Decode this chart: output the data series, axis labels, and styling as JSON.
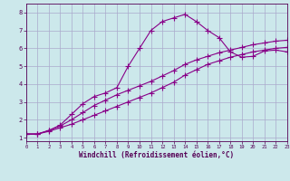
{
  "title": "",
  "xlabel": "Windchill (Refroidissement éolien,°C)",
  "ylabel": "",
  "bg_color": "#cce8eb",
  "line_color": "#880088",
  "grid_color": "#aaaacc",
  "xlim": [
    0,
    23
  ],
  "ylim": [
    0.8,
    8.5
  ],
  "xticks": [
    0,
    1,
    2,
    3,
    4,
    5,
    6,
    7,
    8,
    9,
    10,
    11,
    12,
    13,
    14,
    15,
    16,
    17,
    18,
    19,
    20,
    21,
    22,
    23
  ],
  "yticks": [
    1,
    2,
    3,
    4,
    5,
    6,
    7,
    8
  ],
  "curve1_x": [
    0,
    1,
    2,
    3,
    4,
    5,
    6,
    7,
    8,
    9,
    10,
    11,
    12,
    13,
    14,
    15,
    16,
    17,
    18,
    19,
    20,
    21,
    22,
    23
  ],
  "curve1_y": [
    1.2,
    1.2,
    1.35,
    1.55,
    1.75,
    2.0,
    2.25,
    2.5,
    2.75,
    3.0,
    3.25,
    3.5,
    3.8,
    4.1,
    4.5,
    4.8,
    5.1,
    5.3,
    5.5,
    5.65,
    5.8,
    5.9,
    6.0,
    6.05
  ],
  "curve2_x": [
    0,
    1,
    2,
    3,
    4,
    5,
    6,
    7,
    8,
    9,
    10,
    11,
    12,
    13,
    14,
    15,
    16,
    17,
    18,
    19,
    20,
    21,
    22,
    23
  ],
  "curve2_y": [
    1.2,
    1.2,
    1.4,
    1.65,
    2.0,
    2.4,
    2.8,
    3.1,
    3.4,
    3.65,
    3.9,
    4.15,
    4.45,
    4.75,
    5.1,
    5.35,
    5.55,
    5.75,
    5.9,
    6.05,
    6.2,
    6.3,
    6.4,
    6.45
  ],
  "curve3_x": [
    0,
    1,
    2,
    3,
    4,
    5,
    6,
    7,
    8,
    9,
    10,
    11,
    12,
    13,
    14,
    15,
    16,
    17,
    18,
    19,
    20,
    21,
    22,
    23
  ],
  "curve3_y": [
    1.2,
    1.2,
    1.4,
    1.7,
    2.3,
    2.9,
    3.3,
    3.5,
    3.8,
    5.0,
    6.0,
    7.0,
    7.5,
    7.7,
    7.9,
    7.5,
    7.0,
    6.6,
    5.8,
    5.5,
    5.55,
    5.85,
    5.9,
    5.8
  ],
  "marker": "+",
  "markersize": 4,
  "linewidth": 0.8,
  "figsize": [
    3.2,
    2.0
  ],
  "dpi": 100
}
